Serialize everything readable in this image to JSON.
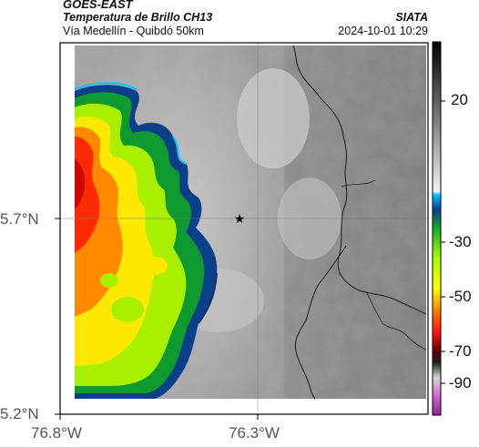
{
  "header": {
    "line1": "GOES-EAST",
    "line2": "Temperatura de Brillo CH13",
    "line3": "Vía Medellín - Quibdó 50km",
    "org": "SIATA",
    "datetime": "2024-10-01 10:29"
  },
  "axes": {
    "y_ticks": [
      "5.7°N",
      "5.2°N"
    ],
    "x_ticks": [
      "76.8°W",
      "76.3°W"
    ]
  },
  "colorbar": {
    "ticks": [
      "20",
      "-30",
      "-50",
      "-70",
      "-90"
    ]
  },
  "map": {
    "marker": "star-marker",
    "cold_colors": [
      "#ff2000",
      "#ff8000",
      "#ffe000",
      "#a0ff00",
      "#10c000",
      "#0a5fa0",
      "#00c0ff",
      "#0a1a6a"
    ],
    "warm_gray": "#a8a8a8"
  }
}
